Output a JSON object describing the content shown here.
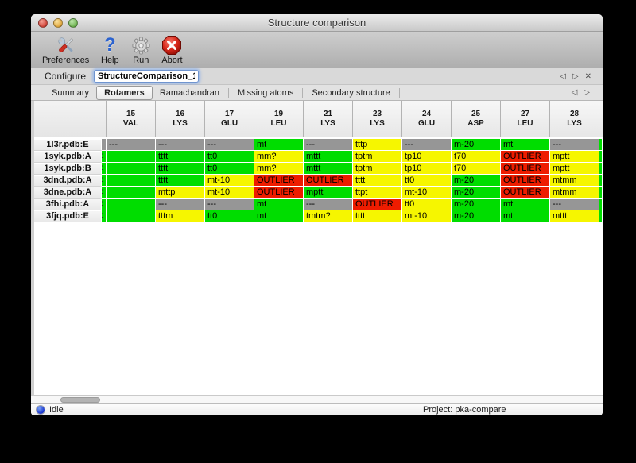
{
  "window": {
    "title": "Structure comparison"
  },
  "toolbar": {
    "items": [
      {
        "label": "Preferences",
        "icon": "tools-icon"
      },
      {
        "label": "Help",
        "icon": "help-icon"
      },
      {
        "label": "Run",
        "icon": "gear-icon"
      },
      {
        "label": "Abort",
        "icon": "abort-icon"
      }
    ]
  },
  "configure": {
    "label": "Configure",
    "value": "StructureComparison_1",
    "nav_prev": "◁",
    "nav_next": "▷",
    "nav_close": "✕"
  },
  "tabs": {
    "items": [
      "Summary",
      "Rotamers",
      "Ramachandran",
      "Missing atoms",
      "Secondary structure"
    ],
    "active": "Rotamers",
    "nav_prev": "◁",
    "nav_next": "▷"
  },
  "colors": {
    "green": "#00dd00",
    "yellow": "#f6f600",
    "red": "#ee1c00",
    "gray": "#969696"
  },
  "table": {
    "columns": [
      {
        "num": "15",
        "res": "VAL"
      },
      {
        "num": "16",
        "res": "LYS"
      },
      {
        "num": "17",
        "res": "GLU"
      },
      {
        "num": "19",
        "res": "LEU"
      },
      {
        "num": "21",
        "res": "LYS"
      },
      {
        "num": "23",
        "res": "LYS"
      },
      {
        "num": "24",
        "res": "GLU"
      },
      {
        "num": "25",
        "res": "ASP"
      },
      {
        "num": "27",
        "res": "LEU"
      },
      {
        "num": "28",
        "res": "LYS"
      }
    ],
    "rows": [
      {
        "name": "1l3r.pdb:E",
        "edge": "gray",
        "edge_mark": "",
        "right": "green",
        "cells": [
          {
            "t": "---",
            "c": "gray"
          },
          {
            "t": "---",
            "c": "gray"
          },
          {
            "t": "---",
            "c": "gray"
          },
          {
            "t": "mt",
            "c": "green"
          },
          {
            "t": "---",
            "c": "gray"
          },
          {
            "t": "tttp",
            "c": "yellow"
          },
          {
            "t": "---",
            "c": "gray"
          },
          {
            "t": "m-20",
            "c": "green"
          },
          {
            "t": "mt",
            "c": "green"
          },
          {
            "t": "---",
            "c": "gray"
          }
        ]
      },
      {
        "name": "1syk.pdb:A",
        "edge": "green",
        "edge_mark": ":",
        "right": "green",
        "cells": [
          {
            "t": "",
            "c": "green"
          },
          {
            "t": "tttt",
            "c": "green"
          },
          {
            "t": "tt0",
            "c": "green"
          },
          {
            "t": "mm?",
            "c": "yellow"
          },
          {
            "t": "mttt",
            "c": "green"
          },
          {
            "t": "tptm",
            "c": "yellow"
          },
          {
            "t": "tp10",
            "c": "yellow"
          },
          {
            "t": "t70",
            "c": "yellow"
          },
          {
            "t": "OUTLIER",
            "c": "red"
          },
          {
            "t": "mptt",
            "c": "yellow"
          }
        ]
      },
      {
        "name": "1syk.pdb:B",
        "edge": "green",
        "edge_mark": ":",
        "right": "green",
        "cells": [
          {
            "t": "",
            "c": "green"
          },
          {
            "t": "tttt",
            "c": "green"
          },
          {
            "t": "tt0",
            "c": "green"
          },
          {
            "t": "mm?",
            "c": "yellow"
          },
          {
            "t": "mttt",
            "c": "green"
          },
          {
            "t": "tptm",
            "c": "yellow"
          },
          {
            "t": "tp10",
            "c": "yellow"
          },
          {
            "t": "t70",
            "c": "yellow"
          },
          {
            "t": "OUTLIER",
            "c": "red"
          },
          {
            "t": "mptt",
            "c": "yellow"
          }
        ]
      },
      {
        "name": "3dnd.pdb:A",
        "edge": "green",
        "edge_mark": ":",
        "right": "green",
        "cells": [
          {
            "t": "",
            "c": "green"
          },
          {
            "t": "tttt",
            "c": "green"
          },
          {
            "t": "mt-10",
            "c": "yellow"
          },
          {
            "t": "OUTLIER",
            "c": "red"
          },
          {
            "t": "OUTLIER",
            "c": "red"
          },
          {
            "t": "tttt",
            "c": "yellow"
          },
          {
            "t": "tt0",
            "c": "yellow"
          },
          {
            "t": "m-20",
            "c": "green"
          },
          {
            "t": "OUTLIER",
            "c": "red"
          },
          {
            "t": "mtmm",
            "c": "yellow"
          }
        ]
      },
      {
        "name": "3dne.pdb:A",
        "edge": "green",
        "edge_mark": ":",
        "right": "green",
        "cells": [
          {
            "t": "",
            "c": "green"
          },
          {
            "t": "mttp",
            "c": "yellow"
          },
          {
            "t": "mt-10",
            "c": "yellow"
          },
          {
            "t": "OUTLIER",
            "c": "red"
          },
          {
            "t": "mptt",
            "c": "green"
          },
          {
            "t": "ttpt",
            "c": "yellow"
          },
          {
            "t": "mt-10",
            "c": "yellow"
          },
          {
            "t": "m-20",
            "c": "green"
          },
          {
            "t": "OUTLIER",
            "c": "red"
          },
          {
            "t": "mtmm",
            "c": "yellow"
          }
        ]
      },
      {
        "name": "3fhi.pdb:A",
        "edge": "green",
        "edge_mark": ":",
        "right": "green",
        "cells": [
          {
            "t": "",
            "c": "green"
          },
          {
            "t": "---",
            "c": "gray"
          },
          {
            "t": "---",
            "c": "gray"
          },
          {
            "t": "mt",
            "c": "green"
          },
          {
            "t": "---",
            "c": "gray"
          },
          {
            "t": "OUTLIER",
            "c": "red"
          },
          {
            "t": "tt0",
            "c": "yellow"
          },
          {
            "t": "m-20",
            "c": "green"
          },
          {
            "t": "mt",
            "c": "green"
          },
          {
            "t": "---",
            "c": "gray"
          }
        ]
      },
      {
        "name": "3fjq.pdb:E",
        "edge": "green",
        "edge_mark": ":",
        "right": "green",
        "cells": [
          {
            "t": "",
            "c": "green"
          },
          {
            "t": "tttm",
            "c": "yellow"
          },
          {
            "t": "tt0",
            "c": "green"
          },
          {
            "t": "mt",
            "c": "green"
          },
          {
            "t": "tmtm?",
            "c": "yellow"
          },
          {
            "t": "tttt",
            "c": "yellow"
          },
          {
            "t": "mt-10",
            "c": "yellow"
          },
          {
            "t": "m-20",
            "c": "green"
          },
          {
            "t": "mt",
            "c": "green"
          },
          {
            "t": "mttt",
            "c": "yellow"
          }
        ]
      }
    ]
  },
  "status": {
    "state": "Idle",
    "project": "Project: pka-compare"
  }
}
